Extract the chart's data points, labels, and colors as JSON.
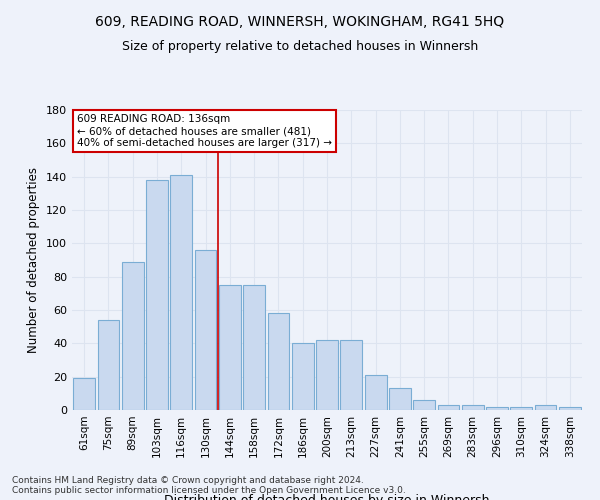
{
  "title": "609, READING ROAD, WINNERSH, WOKINGHAM, RG41 5HQ",
  "subtitle": "Size of property relative to detached houses in Winnersh",
  "xlabel": "Distribution of detached houses by size in Winnersh",
  "ylabel": "Number of detached properties",
  "categories": [
    "61sqm",
    "75sqm",
    "89sqm",
    "103sqm",
    "116sqm",
    "130sqm",
    "144sqm",
    "158sqm",
    "172sqm",
    "186sqm",
    "200sqm",
    "213sqm",
    "227sqm",
    "241sqm",
    "255sqm",
    "269sqm",
    "283sqm",
    "296sqm",
    "310sqm",
    "324sqm",
    "338sqm"
  ],
  "values": [
    19,
    54,
    89,
    138,
    141,
    96,
    75,
    75,
    58,
    40,
    42,
    42,
    21,
    13,
    6,
    3,
    3,
    2,
    2,
    3,
    2
  ],
  "bar_color": "#c9d9ef",
  "bar_edge_color": "#7aadd4",
  "background_color": "#eef2fa",
  "grid_color": "#dde4f0",
  "ylim": [
    0,
    180
  ],
  "yticks": [
    0,
    20,
    40,
    60,
    80,
    100,
    120,
    140,
    160,
    180
  ],
  "vline_x_index": 6,
  "vline_color": "#cc0000",
  "annotation_lines": [
    "609 READING ROAD: 136sqm",
    "← 60% of detached houses are smaller (481)",
    "40% of semi-detached houses are larger (317) →"
  ],
  "annotation_box_color": "#ffffff",
  "annotation_box_edgecolor": "#cc0000",
  "title_fontsize": 10,
  "subtitle_fontsize": 9,
  "footer": "Contains HM Land Registry data © Crown copyright and database right 2024.\nContains public sector information licensed under the Open Government Licence v3.0."
}
